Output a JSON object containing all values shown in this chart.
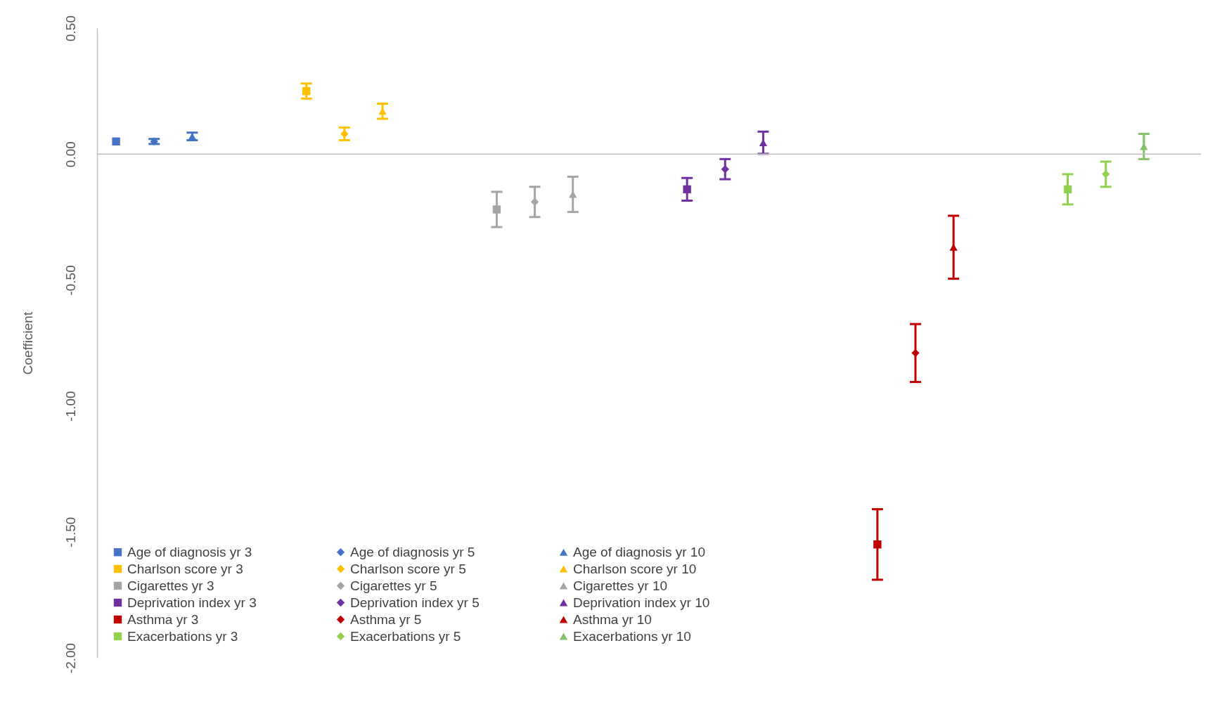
{
  "chart_data": {
    "type": "scatter",
    "ylabel": "Coefficient",
    "categories": [
      null,
      null,
      null,
      null,
      null,
      null,
      null,
      null,
      null,
      null,
      null,
      null,
      null,
      null,
      null,
      null,
      null,
      null,
      null,
      null,
      null,
      null,
      null,
      null,
      null,
      null,
      null,
      null,
      null
    ],
    "ylim": [
      -2.0,
      0.5
    ],
    "yticks": [
      {
        "value": -2,
        "label": "-2.00"
      },
      {
        "value": -1.5,
        "label": "-1.50"
      },
      {
        "value": -1,
        "label": "-1.00"
      },
      {
        "value": -0.5,
        "label": "-0.50"
      },
      {
        "value": 0,
        "label": "0.00"
      },
      {
        "value": 0.5,
        "label": "0.50"
      }
    ],
    "grid": false,
    "ref_lines": [
      {
        "axis": "y",
        "value": 0,
        "color": "#bfbfbf"
      }
    ],
    "legend": "bottom left",
    "tick_labels": "y",
    "series": [
      {
        "name": "Age of diagnosis yr 3",
        "color": "#4472c4",
        "marker": "square",
        "values": [
          0.05,
          null,
          null,
          null,
          null,
          null,
          null,
          null,
          null,
          null,
          null,
          null,
          null,
          null,
          null,
          null,
          null,
          null,
          null,
          null,
          null,
          null,
          null,
          null,
          null,
          null,
          null,
          null,
          null
        ],
        "errors": [
          null,
          null,
          null,
          null,
          null,
          null,
          null,
          null,
          null,
          null,
          null,
          null,
          null,
          null,
          null,
          null,
          null,
          null,
          null,
          null,
          null,
          null,
          null,
          null,
          null,
          null,
          null,
          null,
          null
        ]
      },
      {
        "name": "Age of diagnosis yr 5",
        "color": "#4472c4",
        "marker": "diamond",
        "values": [
          null,
          0.05,
          null,
          null,
          null,
          null,
          null,
          null,
          null,
          null,
          null,
          null,
          null,
          null,
          null,
          null,
          null,
          null,
          null,
          null,
          null,
          null,
          null,
          null,
          null,
          null,
          null,
          null,
          null
        ],
        "errors": [
          null,
          0.01,
          null,
          null,
          null,
          null,
          null,
          null,
          null,
          null,
          null,
          null,
          null,
          null,
          null,
          null,
          null,
          null,
          null,
          null,
          null,
          null,
          null,
          null,
          null,
          null,
          null,
          null,
          null
        ]
      },
      {
        "name": "Age of diagnosis yr 10",
        "color": "#4472c4",
        "marker": "triangle",
        "values": [
          null,
          null,
          0.07,
          null,
          null,
          null,
          null,
          null,
          null,
          null,
          null,
          null,
          null,
          null,
          null,
          null,
          null,
          null,
          null,
          null,
          null,
          null,
          null,
          null,
          null,
          null,
          null,
          null,
          null
        ],
        "errors": [
          null,
          null,
          0.015,
          null,
          null,
          null,
          null,
          null,
          null,
          null,
          null,
          null,
          null,
          null,
          null,
          null,
          null,
          null,
          null,
          null,
          null,
          null,
          null,
          null,
          null,
          null,
          null,
          null,
          null
        ]
      },
      {
        "name": "Charlson score yr 3",
        "color": "#ffc000",
        "marker": "square",
        "values": [
          null,
          null,
          null,
          null,
          null,
          0.25,
          null,
          null,
          null,
          null,
          null,
          null,
          null,
          null,
          null,
          null,
          null,
          null,
          null,
          null,
          null,
          null,
          null,
          null,
          null,
          null,
          null,
          null,
          null
        ],
        "errors": [
          null,
          null,
          null,
          null,
          null,
          0.03,
          null,
          null,
          null,
          null,
          null,
          null,
          null,
          null,
          null,
          null,
          null,
          null,
          null,
          null,
          null,
          null,
          null,
          null,
          null,
          null,
          null,
          null,
          null
        ]
      },
      {
        "name": "Charlson score yr 5",
        "color": "#ffc000",
        "marker": "diamond",
        "values": [
          null,
          null,
          null,
          null,
          null,
          null,
          0.08,
          null,
          null,
          null,
          null,
          null,
          null,
          null,
          null,
          null,
          null,
          null,
          null,
          null,
          null,
          null,
          null,
          null,
          null,
          null,
          null,
          null,
          null
        ],
        "errors": [
          null,
          null,
          null,
          null,
          null,
          null,
          0.025,
          null,
          null,
          null,
          null,
          null,
          null,
          null,
          null,
          null,
          null,
          null,
          null,
          null,
          null,
          null,
          null,
          null,
          null,
          null,
          null,
          null,
          null
        ]
      },
      {
        "name": "Charlson score yr 10",
        "color": "#ffc000",
        "marker": "triangle",
        "values": [
          null,
          null,
          null,
          null,
          null,
          null,
          null,
          0.17,
          null,
          null,
          null,
          null,
          null,
          null,
          null,
          null,
          null,
          null,
          null,
          null,
          null,
          null,
          null,
          null,
          null,
          null,
          null,
          null,
          null
        ],
        "errors": [
          null,
          null,
          null,
          null,
          null,
          null,
          null,
          0.03,
          null,
          null,
          null,
          null,
          null,
          null,
          null,
          null,
          null,
          null,
          null,
          null,
          null,
          null,
          null,
          null,
          null,
          null,
          null,
          null,
          null
        ]
      },
      {
        "name": "Cigarettes yr 3",
        "color": "#a5a5a5",
        "marker": "square",
        "values": [
          null,
          null,
          null,
          null,
          null,
          null,
          null,
          null,
          null,
          null,
          -0.22,
          null,
          null,
          null,
          null,
          null,
          null,
          null,
          null,
          null,
          null,
          null,
          null,
          null,
          null,
          null,
          null,
          null,
          null
        ],
        "errors": [
          null,
          null,
          null,
          null,
          null,
          null,
          null,
          null,
          null,
          null,
          0.07,
          null,
          null,
          null,
          null,
          null,
          null,
          null,
          null,
          null,
          null,
          null,
          null,
          null,
          null,
          null,
          null,
          null,
          null
        ]
      },
      {
        "name": "Cigarettes yr 5",
        "color": "#a5a5a5",
        "marker": "diamond",
        "values": [
          null,
          null,
          null,
          null,
          null,
          null,
          null,
          null,
          null,
          null,
          null,
          -0.19,
          null,
          null,
          null,
          null,
          null,
          null,
          null,
          null,
          null,
          null,
          null,
          null,
          null,
          null,
          null,
          null,
          null
        ],
        "errors": [
          null,
          null,
          null,
          null,
          null,
          null,
          null,
          null,
          null,
          null,
          null,
          0.06,
          null,
          null,
          null,
          null,
          null,
          null,
          null,
          null,
          null,
          null,
          null,
          null,
          null,
          null,
          null,
          null,
          null
        ]
      },
      {
        "name": "Cigarettes yr 10",
        "color": "#a5a5a5",
        "marker": "triangle",
        "values": [
          null,
          null,
          null,
          null,
          null,
          null,
          null,
          null,
          null,
          null,
          null,
          null,
          -0.16,
          null,
          null,
          null,
          null,
          null,
          null,
          null,
          null,
          null,
          null,
          null,
          null,
          null,
          null,
          null,
          null
        ],
        "errors": [
          null,
          null,
          null,
          null,
          null,
          null,
          null,
          null,
          null,
          null,
          null,
          null,
          0.07,
          null,
          null,
          null,
          null,
          null,
          null,
          null,
          null,
          null,
          null,
          null,
          null,
          null,
          null,
          null,
          null
        ]
      },
      {
        "name": "Deprivation index yr 3",
        "color": "#7030a0",
        "marker": "square",
        "values": [
          null,
          null,
          null,
          null,
          null,
          null,
          null,
          null,
          null,
          null,
          null,
          null,
          null,
          null,
          null,
          -0.14,
          null,
          null,
          null,
          null,
          null,
          null,
          null,
          null,
          null,
          null,
          null,
          null,
          null
        ],
        "errors": [
          null,
          null,
          null,
          null,
          null,
          null,
          null,
          null,
          null,
          null,
          null,
          null,
          null,
          null,
          null,
          0.045,
          null,
          null,
          null,
          null,
          null,
          null,
          null,
          null,
          null,
          null,
          null,
          null,
          null
        ]
      },
      {
        "name": "Deprivation index yr 5",
        "color": "#7030a0",
        "marker": "diamond",
        "values": [
          null,
          null,
          null,
          null,
          null,
          null,
          null,
          null,
          null,
          null,
          null,
          null,
          null,
          null,
          null,
          null,
          -0.06,
          null,
          null,
          null,
          null,
          null,
          null,
          null,
          null,
          null,
          null,
          null,
          null
        ],
        "errors": [
          null,
          null,
          null,
          null,
          null,
          null,
          null,
          null,
          null,
          null,
          null,
          null,
          null,
          null,
          null,
          null,
          0.04,
          null,
          null,
          null,
          null,
          null,
          null,
          null,
          null,
          null,
          null,
          null,
          null
        ]
      },
      {
        "name": "Deprivation index yr 10",
        "color": "#7030a0",
        "marker": "triangle",
        "values": [
          null,
          null,
          null,
          null,
          null,
          null,
          null,
          null,
          null,
          null,
          null,
          null,
          null,
          null,
          null,
          null,
          null,
          0.045,
          null,
          null,
          null,
          null,
          null,
          null,
          null,
          null,
          null,
          null,
          null
        ],
        "errors": [
          null,
          null,
          null,
          null,
          null,
          null,
          null,
          null,
          null,
          null,
          null,
          null,
          null,
          null,
          null,
          null,
          null,
          0.044,
          null,
          null,
          null,
          null,
          null,
          null,
          null,
          null,
          null,
          null,
          null
        ]
      },
      {
        "name": "Asthma yr 3",
        "color": "#c00000",
        "marker": "square",
        "values": [
          null,
          null,
          null,
          null,
          null,
          null,
          null,
          null,
          null,
          null,
          null,
          null,
          null,
          null,
          null,
          null,
          null,
          null,
          null,
          null,
          -1.55,
          null,
          null,
          null,
          null,
          null,
          null,
          null,
          null
        ],
        "errors": [
          null,
          null,
          null,
          null,
          null,
          null,
          null,
          null,
          null,
          null,
          null,
          null,
          null,
          null,
          null,
          null,
          null,
          null,
          null,
          null,
          0.14,
          null,
          null,
          null,
          null,
          null,
          null,
          null,
          null
        ]
      },
      {
        "name": "Asthma yr 5",
        "color": "#c00000",
        "marker": "diamond",
        "values": [
          null,
          null,
          null,
          null,
          null,
          null,
          null,
          null,
          null,
          null,
          null,
          null,
          null,
          null,
          null,
          null,
          null,
          null,
          null,
          null,
          null,
          -0.79,
          null,
          null,
          null,
          null,
          null,
          null,
          null
        ],
        "errors": [
          null,
          null,
          null,
          null,
          null,
          null,
          null,
          null,
          null,
          null,
          null,
          null,
          null,
          null,
          null,
          null,
          null,
          null,
          null,
          null,
          null,
          0.115,
          null,
          null,
          null,
          null,
          null,
          null,
          null
        ]
      },
      {
        "name": "Asthma yr 10",
        "color": "#c00000",
        "marker": "triangle",
        "values": [
          null,
          null,
          null,
          null,
          null,
          null,
          null,
          null,
          null,
          null,
          null,
          null,
          null,
          null,
          null,
          null,
          null,
          null,
          null,
          null,
          null,
          null,
          -0.37,
          null,
          null,
          null,
          null,
          null,
          null
        ],
        "errors": [
          null,
          null,
          null,
          null,
          null,
          null,
          null,
          null,
          null,
          null,
          null,
          null,
          null,
          null,
          null,
          null,
          null,
          null,
          null,
          null,
          null,
          null,
          0.125,
          null,
          null,
          null,
          null,
          null,
          null
        ]
      },
      {
        "name": "Exacerbations yr 3",
        "color": "#92d050",
        "marker": "square",
        "values": [
          null,
          null,
          null,
          null,
          null,
          null,
          null,
          null,
          null,
          null,
          null,
          null,
          null,
          null,
          null,
          null,
          null,
          null,
          null,
          null,
          null,
          null,
          null,
          null,
          null,
          -0.14,
          null,
          null,
          null
        ],
        "errors": [
          null,
          null,
          null,
          null,
          null,
          null,
          null,
          null,
          null,
          null,
          null,
          null,
          null,
          null,
          null,
          null,
          null,
          null,
          null,
          null,
          null,
          null,
          null,
          null,
          null,
          0.06,
          null,
          null,
          null
        ]
      },
      {
        "name": "Exacerbations yr 5",
        "color": "#92d050",
        "marker": "diamond",
        "values": [
          null,
          null,
          null,
          null,
          null,
          null,
          null,
          null,
          null,
          null,
          null,
          null,
          null,
          null,
          null,
          null,
          null,
          null,
          null,
          null,
          null,
          null,
          null,
          null,
          null,
          null,
          -0.08,
          null,
          null
        ],
        "errors": [
          null,
          null,
          null,
          null,
          null,
          null,
          null,
          null,
          null,
          null,
          null,
          null,
          null,
          null,
          null,
          null,
          null,
          null,
          null,
          null,
          null,
          null,
          null,
          null,
          null,
          null,
          0.05,
          null,
          null
        ]
      },
      {
        "name": "Exacerbations yr 10",
        "color": "#86c06a",
        "marker": "triangle",
        "values": [
          null,
          null,
          null,
          null,
          null,
          null,
          null,
          null,
          null,
          null,
          null,
          null,
          null,
          null,
          null,
          null,
          null,
          null,
          null,
          null,
          null,
          null,
          null,
          null,
          null,
          null,
          null,
          0.03,
          null
        ],
        "errors": [
          null,
          null,
          null,
          null,
          null,
          null,
          null,
          null,
          null,
          null,
          null,
          null,
          null,
          null,
          null,
          null,
          null,
          null,
          null,
          null,
          null,
          null,
          null,
          null,
          null,
          null,
          null,
          0.05,
          null
        ]
      }
    ]
  }
}
